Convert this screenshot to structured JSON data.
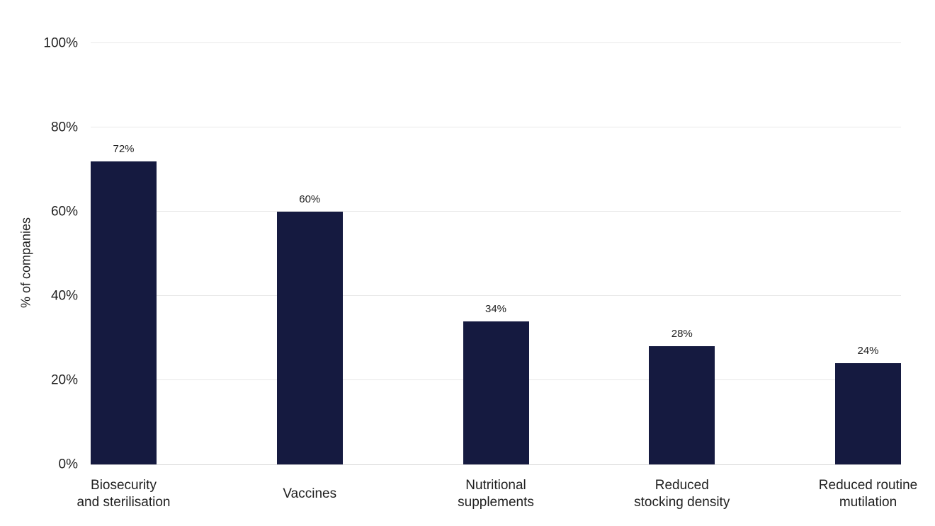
{
  "chart_data": {
    "type": "bar",
    "title": "",
    "xlabel": "",
    "ylabel": "% of companies",
    "ylim": [
      0,
      100
    ],
    "yticks": [
      0,
      20,
      40,
      60,
      80,
      100
    ],
    "ytick_labels": [
      "0%",
      "20%",
      "40%",
      "60%",
      "80%",
      "100%"
    ],
    "grid": true,
    "legend": "none",
    "categories": [
      {
        "label": "Biosecurity and sterilisation",
        "lines": [
          "Biosecurity",
          "and sterilisation"
        ]
      },
      {
        "label": "Vaccines",
        "lines": [
          "Vaccines"
        ]
      },
      {
        "label": "Nutritional supplements",
        "lines": [
          "Nutritional",
          "supplements"
        ]
      },
      {
        "label": "Reduced stocking density",
        "lines": [
          "Reduced",
          "stocking density"
        ]
      },
      {
        "label": "Reduced routine mutilation",
        "lines": [
          "Reduced routine",
          "mutilation"
        ]
      }
    ],
    "values": [
      72,
      60,
      34,
      28,
      24
    ],
    "value_labels": [
      "72%",
      "60%",
      "34%",
      "28%",
      "24%"
    ],
    "colors": {
      "bar": "#151a40",
      "gridline": "#e8e8e8",
      "axis_line": "#d8d8d8",
      "text": "#1f1f1f",
      "background": "#ffffff"
    }
  }
}
